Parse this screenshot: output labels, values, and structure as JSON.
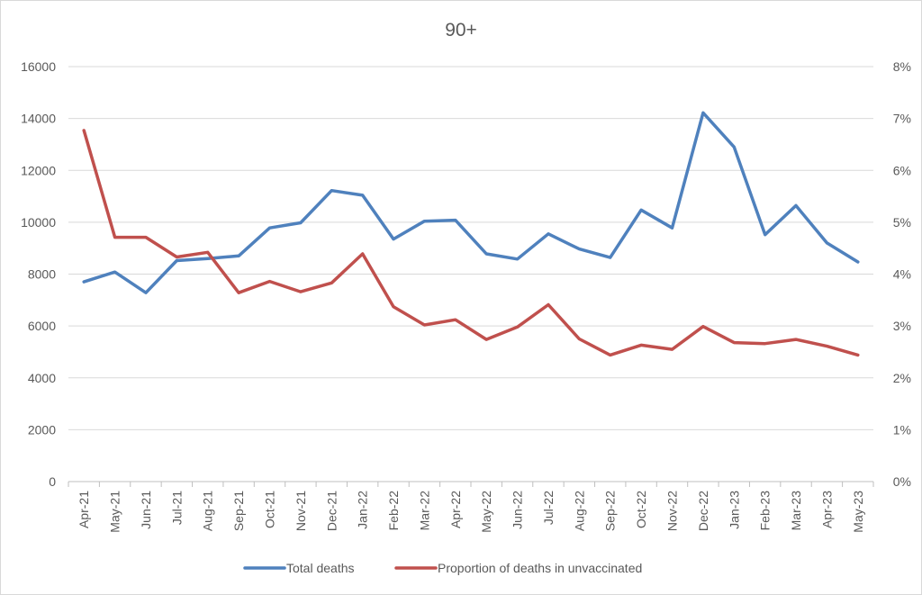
{
  "chart_data": {
    "type": "line",
    "title": "90+",
    "categories": [
      "Apr-21",
      "May-21",
      "Jun-21",
      "Jul-21",
      "Aug-21",
      "Sep-21",
      "Oct-21",
      "Nov-21",
      "Dec-21",
      "Jan-22",
      "Feb-22",
      "Mar-22",
      "Apr-22",
      "May-22",
      "Jun-22",
      "Jul-22",
      "Aug-22",
      "Sep-22",
      "Oct-22",
      "Nov-22",
      "Dec-22",
      "Jan-23",
      "Feb-23",
      "Mar-23",
      "Apr-23",
      "May-23"
    ],
    "y_left": {
      "min": 0,
      "max": 16000,
      "step": 2000,
      "ticks": [
        "0",
        "2000",
        "4000",
        "6000",
        "8000",
        "10000",
        "12000",
        "14000",
        "16000"
      ]
    },
    "y_right": {
      "min": 0,
      "max": 8,
      "step": 1,
      "ticks": [
        "0%",
        "1%",
        "2%",
        "3%",
        "4%",
        "5%",
        "6%",
        "7%",
        "8%"
      ]
    },
    "grid": true,
    "legend_position": "bottom",
    "series": [
      {
        "name": "Total deaths",
        "axis": "left",
        "color": "#4f81bd",
        "values": [
          7700,
          8080,
          7280,
          8520,
          8600,
          8700,
          9780,
          9980,
          11220,
          11040,
          9350,
          10040,
          10080,
          8780,
          8580,
          9550,
          8970,
          8640,
          10470,
          9780,
          14220,
          12900,
          9520,
          10640,
          9200,
          8470
        ]
      },
      {
        "name": "Proportion of deaths in unvaccinated",
        "axis": "right",
        "color": "#c0504d",
        "values": [
          6.77,
          4.71,
          4.71,
          4.33,
          4.42,
          3.64,
          3.86,
          3.66,
          3.83,
          4.39,
          3.37,
          3.02,
          3.12,
          2.74,
          2.98,
          3.41,
          2.75,
          2.44,
          2.63,
          2.55,
          2.99,
          2.68,
          2.66,
          2.74,
          2.61,
          2.44
        ]
      }
    ]
  }
}
